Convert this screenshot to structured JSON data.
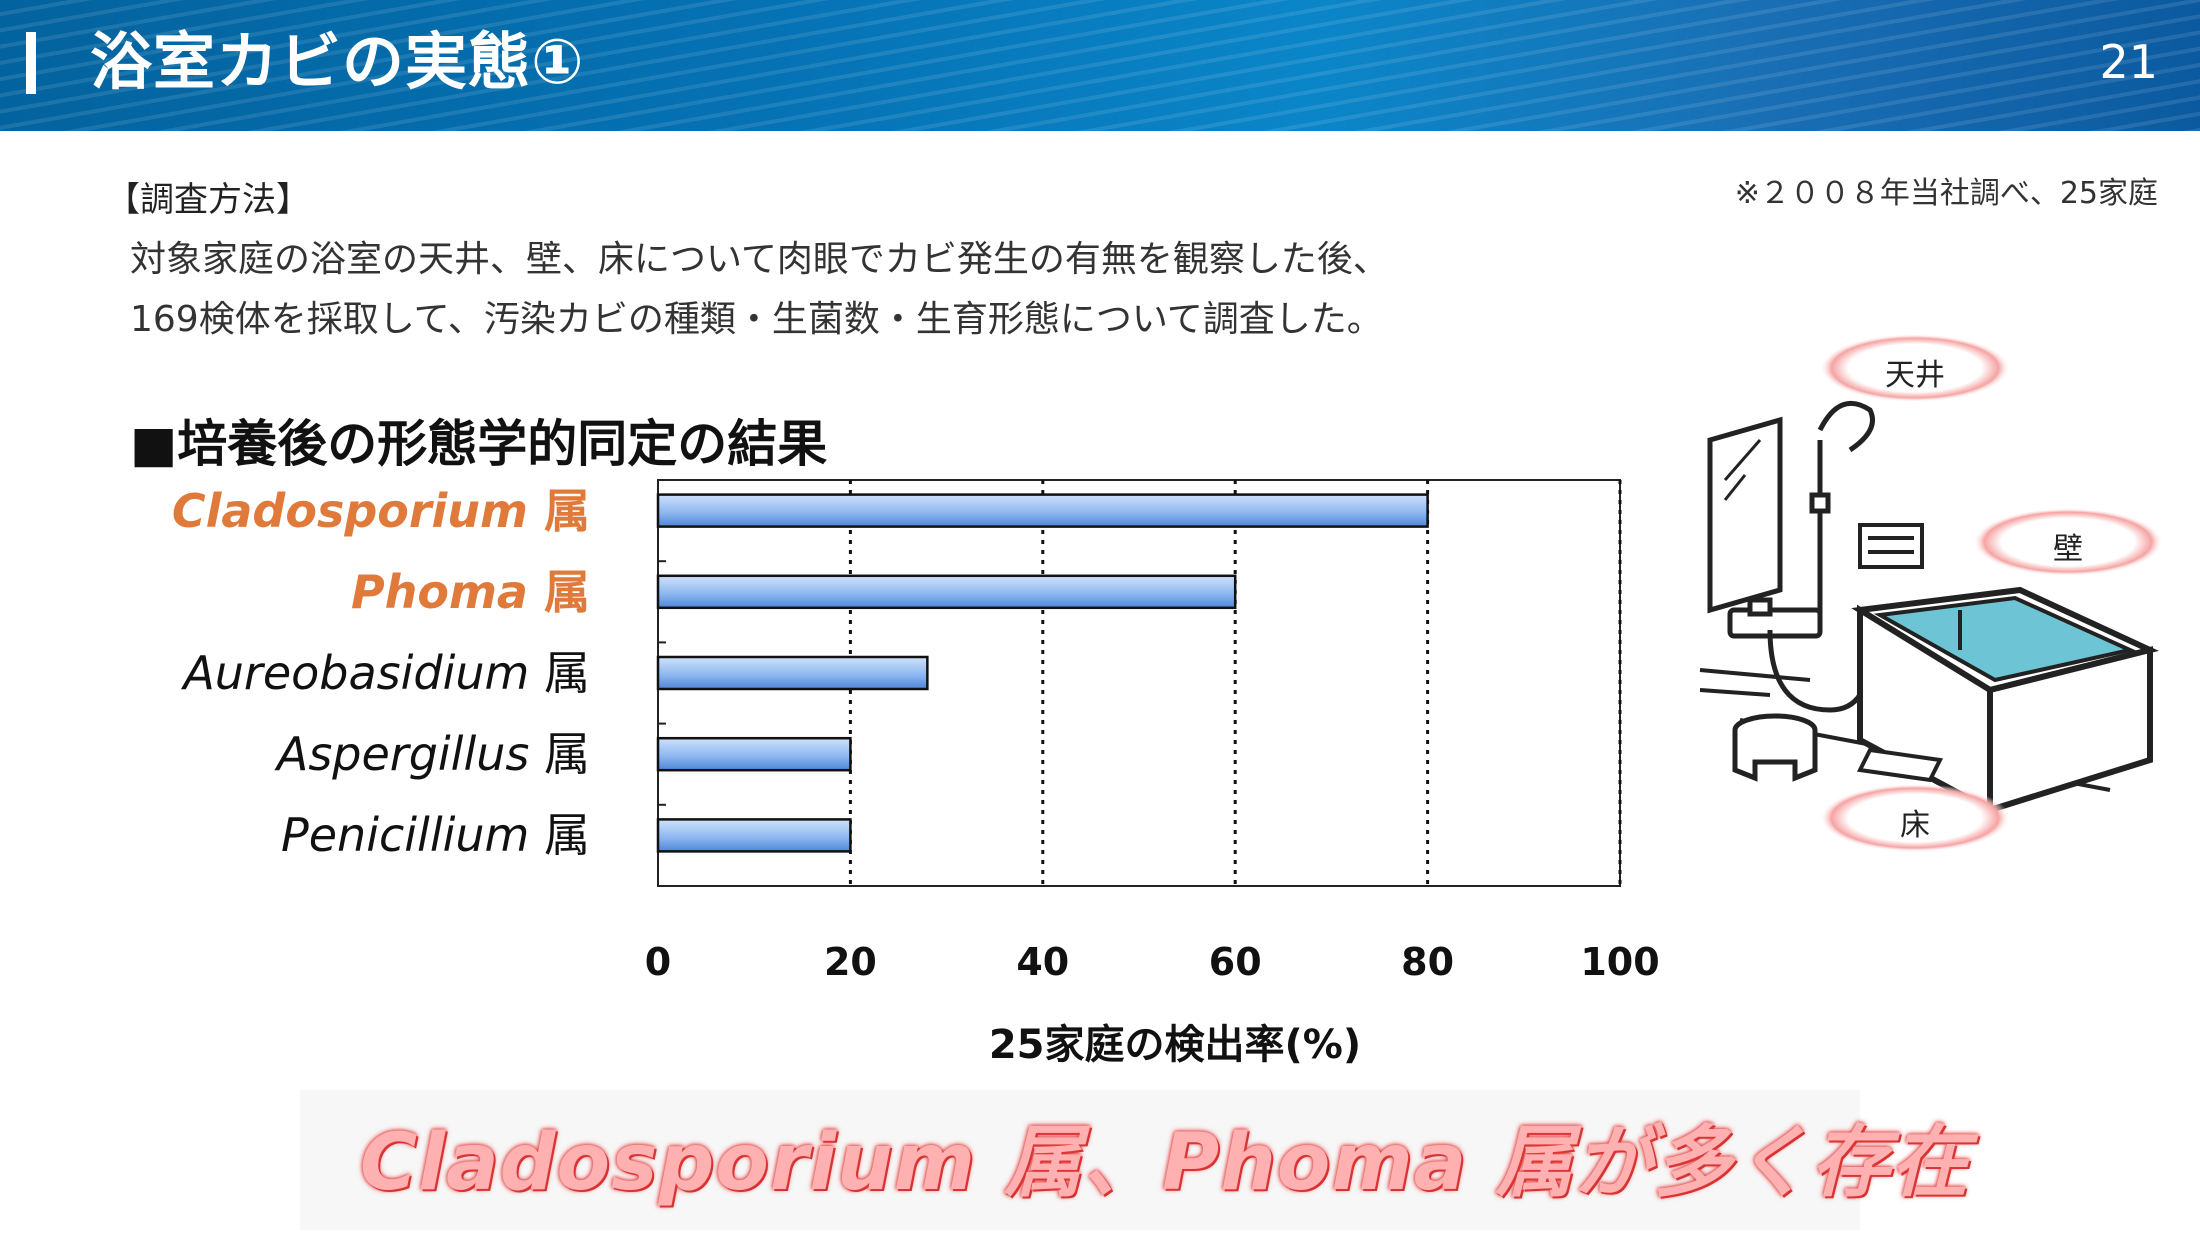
{
  "header": {
    "title": "浴室カビの実態①",
    "page_number": "21"
  },
  "source_note": "※２００８年当社調べ、25家庭",
  "method": {
    "label": "【調査方法】",
    "line1": "対象家庭の浴室の天井、壁、床について肉眼でカビ発生の有無を観察した後、",
    "line2": "169検体を採取して、汚染カビの種類・生菌数・生育形態について調査した。"
  },
  "section_title": "■培養後の形態学的同定の結果",
  "chart_data": {
    "type": "bar",
    "orientation": "horizontal",
    "categories": [
      "Cladosporium",
      "Phoma",
      "Aureobasidium",
      "Aspergillus",
      "Penicillium"
    ],
    "category_suffix": "属",
    "values": [
      80,
      60,
      28,
      20,
      20
    ],
    "highlighted": [
      true,
      true,
      false,
      false,
      false
    ],
    "xlabel": "25家庭の検出率(%)",
    "xlim": [
      0,
      100
    ],
    "xticks": [
      "0",
      "20",
      "40",
      "60",
      "80",
      "100"
    ],
    "grid": "vertical-dotted",
    "bar_color": "#8fb8f0",
    "highlight_color": "#e07a3a"
  },
  "illustration": {
    "labels": {
      "ceiling": "天井",
      "wall": "壁",
      "floor": "床"
    }
  },
  "conclusion": "Cladosporium 属、Phoma 属が多く存在"
}
